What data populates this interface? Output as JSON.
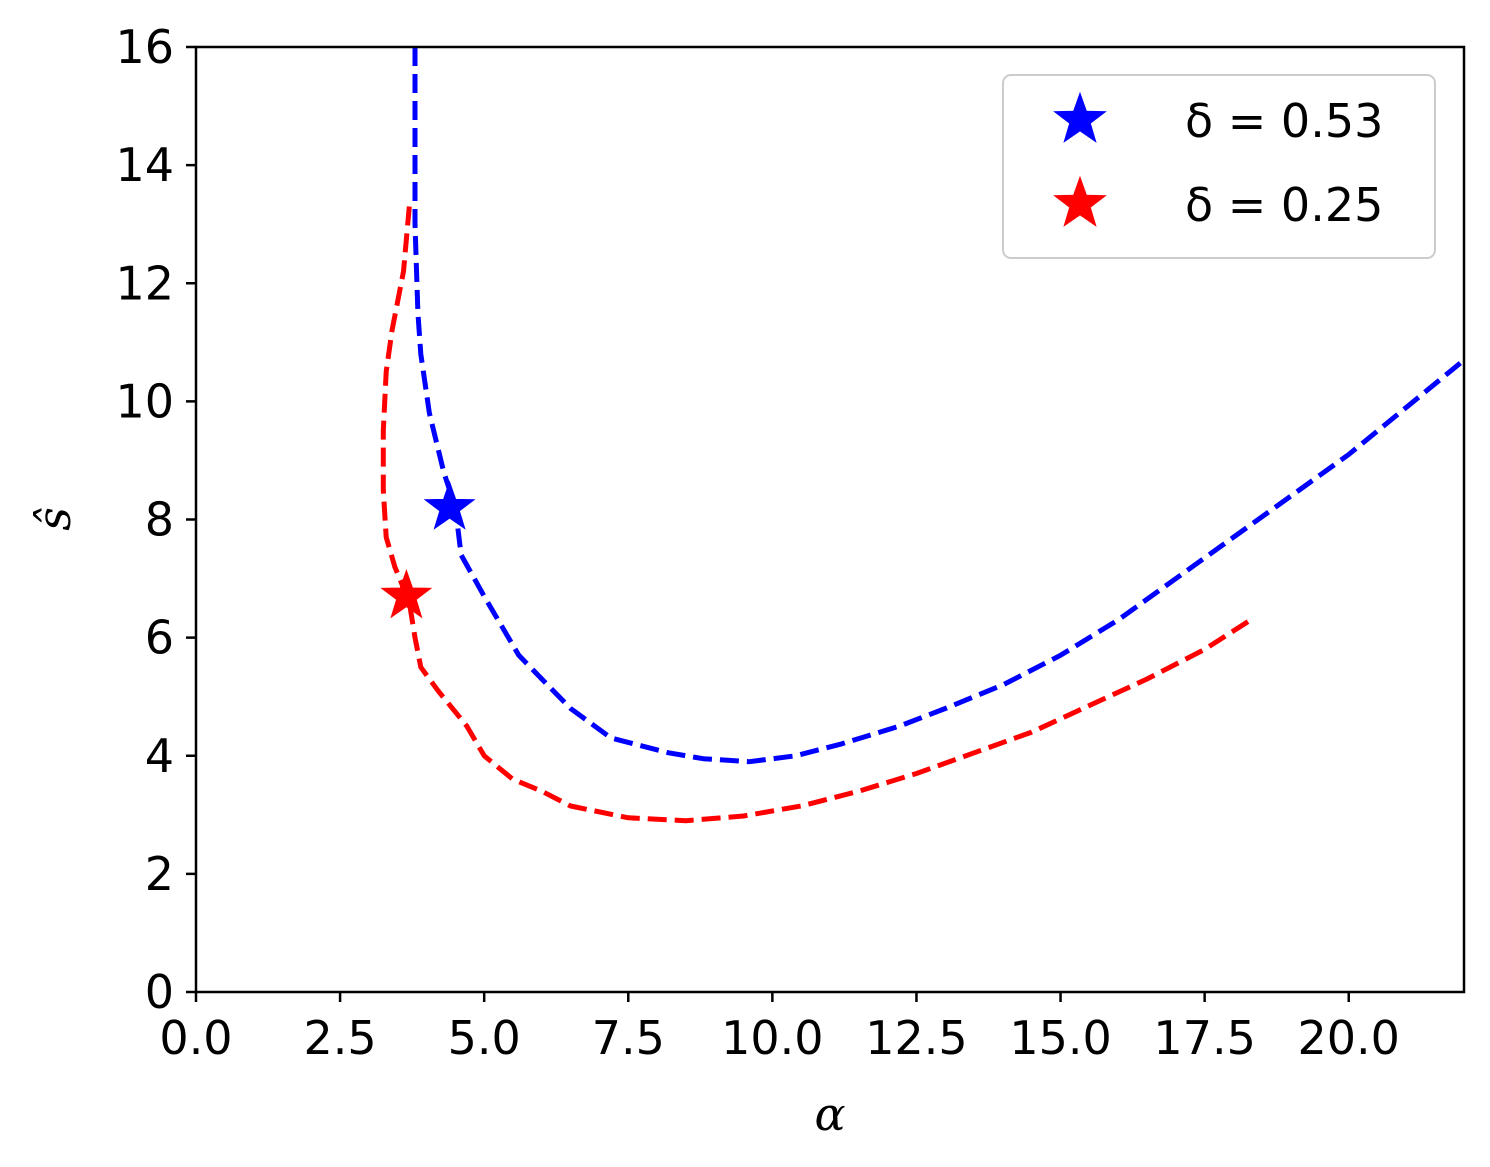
{
  "chart_data": {
    "type": "line",
    "title": "",
    "xlabel": "α",
    "ylabel": "ŝ",
    "xlim": [
      0,
      22
    ],
    "ylim": [
      0,
      16
    ],
    "xticks": [
      "0.0",
      "2.5",
      "5.0",
      "7.5",
      "10.0",
      "12.5",
      "15.0",
      "17.5",
      "20.0"
    ],
    "yticks": [
      "0",
      "2",
      "4",
      "6",
      "8",
      "10",
      "12",
      "14",
      "16"
    ],
    "grid": false,
    "legend_position": "top-right",
    "series": [
      {
        "name": "δ = 0.53",
        "color": "#0000ff",
        "line_style": "dashed",
        "marker": {
          "x": 4.4,
          "y": 8.2,
          "symbol": "star"
        },
        "points": [
          [
            3.8,
            16.0
          ],
          [
            3.8,
            13.0
          ],
          [
            3.85,
            11.5
          ],
          [
            3.9,
            10.8
          ],
          [
            4.05,
            9.8
          ],
          [
            4.3,
            8.8
          ],
          [
            4.5,
            8.2
          ],
          [
            4.6,
            7.4
          ],
          [
            5.0,
            6.7
          ],
          [
            5.6,
            5.7
          ],
          [
            6.0,
            5.3
          ],
          [
            6.5,
            4.8
          ],
          [
            7.2,
            4.3
          ],
          [
            8.2,
            4.05
          ],
          [
            8.8,
            3.95
          ],
          [
            9.6,
            3.9
          ],
          [
            10.4,
            4.0
          ],
          [
            11.2,
            4.2
          ],
          [
            12.2,
            4.5
          ],
          [
            13.0,
            4.8
          ],
          [
            14.0,
            5.2
          ],
          [
            15.0,
            5.7
          ],
          [
            16.0,
            6.3
          ],
          [
            17.0,
            7.0
          ],
          [
            18.0,
            7.7
          ],
          [
            19.0,
            8.4
          ],
          [
            20.0,
            9.1
          ],
          [
            21.0,
            9.9
          ],
          [
            22.0,
            10.7
          ]
        ]
      },
      {
        "name": "δ = 0.25",
        "color": "#ff0000",
        "line_style": "dashed",
        "marker": {
          "x": 3.65,
          "y": 6.7,
          "symbol": "star"
        },
        "points": [
          [
            3.7,
            13.3
          ],
          [
            3.6,
            12.2
          ],
          [
            3.4,
            11.2
          ],
          [
            3.3,
            10.5
          ],
          [
            3.25,
            9.5
          ],
          [
            3.25,
            8.5
          ],
          [
            3.3,
            7.7
          ],
          [
            3.45,
            7.2
          ],
          [
            3.7,
            6.6
          ],
          [
            3.8,
            6.0
          ],
          [
            3.9,
            5.5
          ],
          [
            4.2,
            5.1
          ],
          [
            4.7,
            4.5
          ],
          [
            5.0,
            4.0
          ],
          [
            5.5,
            3.6
          ],
          [
            6.0,
            3.4
          ],
          [
            6.5,
            3.15
          ],
          [
            7.5,
            2.95
          ],
          [
            8.5,
            2.9
          ],
          [
            9.5,
            2.98
          ],
          [
            10.5,
            3.15
          ],
          [
            11.5,
            3.4
          ],
          [
            12.5,
            3.7
          ],
          [
            13.5,
            4.05
          ],
          [
            14.5,
            4.4
          ],
          [
            15.5,
            4.85
          ],
          [
            16.5,
            5.3
          ],
          [
            17.5,
            5.8
          ],
          [
            18.3,
            6.3
          ]
        ]
      }
    ]
  }
}
